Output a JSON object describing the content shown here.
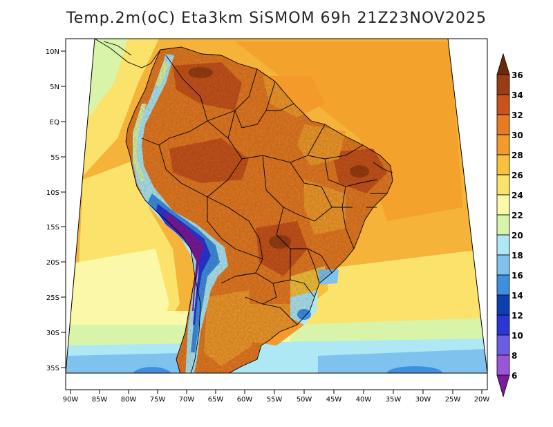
{
  "title": "Temp.2m(oC) Eta3km SiSMOM 69h 21Z23NOV2025",
  "axes": {
    "lat_labels": [
      "10N",
      "5N",
      "EQ",
      "5S",
      "10S",
      "15S",
      "20S",
      "25S",
      "30S",
      "35S"
    ],
    "lon_labels": [
      "90W",
      "85W",
      "80W",
      "75W",
      "70W",
      "65W",
      "60W",
      "55W",
      "50W",
      "45W",
      "40W",
      "35W",
      "30W",
      "25W",
      "20W"
    ]
  },
  "colorbar": {
    "labels": [
      "36",
      "34",
      "32",
      "30",
      "28",
      "26",
      "24",
      "22",
      "20",
      "18",
      "16",
      "14",
      "12",
      "10",
      "8",
      "6"
    ],
    "colors": [
      "#6b2a0a",
      "#9a3d12",
      "#c9541b",
      "#e77b22",
      "#f39a2a",
      "#f7c13a",
      "#fbe26b",
      "#fbf8a8",
      "#d8f4a8",
      "#aee8f4",
      "#7fc2ee",
      "#3f8fe0",
      "#0e3fb0",
      "#2a36d8",
      "#6a5ce6",
      "#9b55d8",
      "#7a1a9c"
    ]
  },
  "chart_data": {
    "type": "heatmap",
    "title": "Temp.2m(oC) Eta3km SiSMOM 69h 21Z23NOV2025",
    "variable": "2 m air temperature",
    "units": "oC",
    "model": "Eta3km SiSMOM",
    "forecast_hour": "69h",
    "valid_time": "21Z23NOV2025",
    "lat_range": [
      "37S",
      "11N"
    ],
    "lon_range": [
      "90W",
      "20W"
    ],
    "scale_min": 6,
    "scale_max": 36,
    "scale_step": 2
  }
}
